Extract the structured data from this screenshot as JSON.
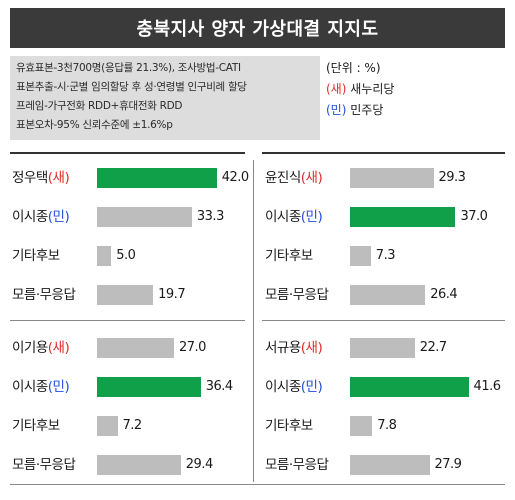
{
  "title": "충북지사 양자 가상대결 지지도",
  "info_lines": [
    "유효표본-3천700명(응답률 21.3%), 조사방법-CATI",
    "표본추출-시·군별 임의할당 후 성·연령별 인구비례 할당",
    "프레임-가구전화 RDD+휴대전화 RDD",
    "표본오차-95% 신뢰수준에 ±1.6%p"
  ],
  "legend": {
    "unit": "(단위 : %)",
    "saenuri_code": "(새)",
    "saenuri_name": "새누리당",
    "minju_code": "(민)",
    "minju_name": "민주당"
  },
  "colors": {
    "header_bg": "#3a3a3a",
    "info_bg": "#dddddd",
    "leading_bar": "#10a04a",
    "other_bar": "#bdbdbd",
    "saenuri": "#e22a2a",
    "minju": "#1f4fd6"
  },
  "chart_data": [
    {
      "type": "bar",
      "title": "",
      "categories": [
        "정우택(새)",
        "이시종(민)",
        "기타후보",
        "모름·무응답"
      ],
      "values": [
        42.0,
        33.3,
        5.0,
        19.7
      ],
      "value_labels": [
        "42.0",
        "33.3",
        "5.0",
        "19.7"
      ],
      "name_parts": [
        [
          "정우택",
          "(새)",
          "red"
        ],
        [
          "이시종",
          "(민)",
          "blue"
        ],
        [
          "기타후보",
          "",
          ""
        ],
        [
          "모름·무응답",
          "",
          ""
        ]
      ],
      "highlight": 0
    },
    {
      "type": "bar",
      "title": "",
      "categories": [
        "윤진식(새)",
        "이시종(민)",
        "기타후보",
        "모름·무응답"
      ],
      "values": [
        29.3,
        37.0,
        7.3,
        26.4
      ],
      "value_labels": [
        "29.3",
        "37.0",
        "7.3",
        "26.4"
      ],
      "name_parts": [
        [
          "윤진식",
          "(새)",
          "red"
        ],
        [
          "이시종",
          "(민)",
          "blue"
        ],
        [
          "기타후보",
          "",
          ""
        ],
        [
          "모름·무응답",
          "",
          ""
        ]
      ],
      "highlight": 1
    },
    {
      "type": "bar",
      "title": "",
      "categories": [
        "이기용(새)",
        "이시종(민)",
        "기타후보",
        "모름·무응답"
      ],
      "values": [
        27.0,
        36.4,
        7.2,
        29.4
      ],
      "value_labels": [
        "27.0",
        "36.4",
        "7.2",
        "29.4"
      ],
      "name_parts": [
        [
          "이기용",
          "(새)",
          "red"
        ],
        [
          "이시종",
          "(민)",
          "blue"
        ],
        [
          "기타후보",
          "",
          ""
        ],
        [
          "모름·무응답",
          "",
          ""
        ]
      ],
      "highlight": 1
    },
    {
      "type": "bar",
      "title": "",
      "categories": [
        "서규용(새)",
        "이시종(민)",
        "기타후보",
        "모름·무응답"
      ],
      "values": [
        22.7,
        41.6,
        7.8,
        27.9
      ],
      "value_labels": [
        "22.7",
        "41.6",
        "7.8",
        "27.9"
      ],
      "name_parts": [
        [
          "서규용",
          "(새)",
          "red"
        ],
        [
          "이시종",
          "(민)",
          "blue"
        ],
        [
          "기타후보",
          "",
          ""
        ],
        [
          "모름·무응답",
          "",
          ""
        ]
      ],
      "highlight": 1
    }
  ]
}
